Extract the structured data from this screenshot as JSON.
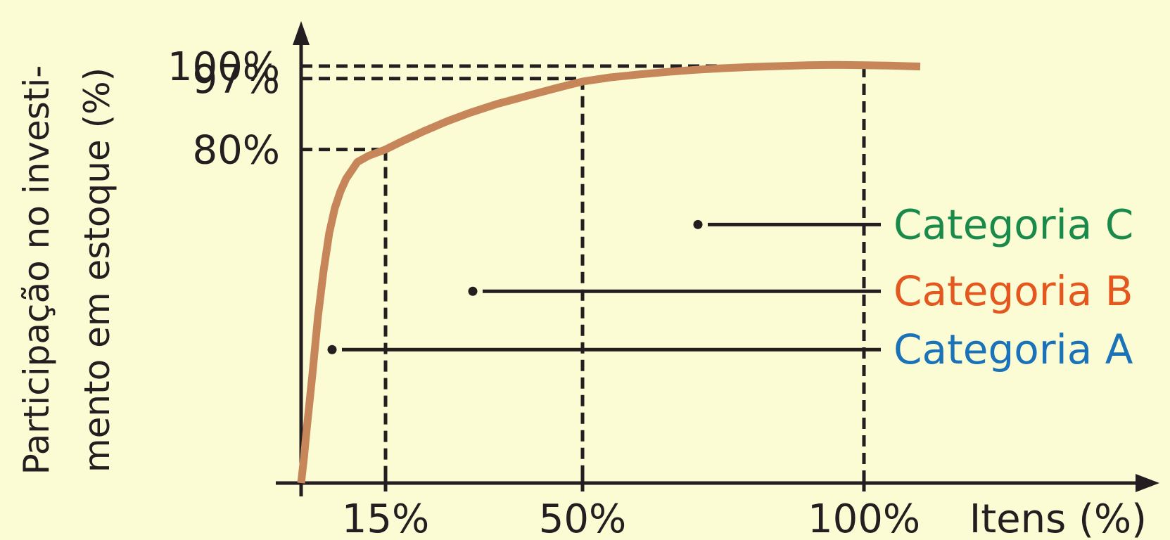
{
  "chart_data": {
    "type": "line",
    "title": "",
    "ylabel_lines": [
      "Participação no investi-",
      "mento em estoque (%)"
    ],
    "xlabel": "Itens (%)",
    "x_ticks": [
      {
        "value": 15,
        "label": "15%"
      },
      {
        "value": 50,
        "label": "50%"
      },
      {
        "value": 100,
        "label": "100%"
      }
    ],
    "y_ticks": [
      {
        "value": 80,
        "label": "80%"
      },
      {
        "value": 97,
        "label": "97%"
      },
      {
        "value": 100,
        "label": "100%"
      }
    ],
    "xlim": [
      0,
      112
    ],
    "ylim": [
      0,
      108
    ],
    "series": [
      {
        "color": "#c6865a",
        "x": [
          0,
          0.5,
          1,
          2,
          3,
          4,
          5,
          6,
          7,
          8,
          9,
          10,
          12,
          15,
          18,
          22,
          26,
          30,
          35,
          40,
          45,
          50,
          55,
          60,
          65,
          70,
          75,
          80,
          85,
          90,
          95,
          100,
          105,
          110
        ],
        "y": [
          0,
          6,
          13,
          26,
          40,
          51,
          60,
          66,
          70,
          73,
          75,
          77,
          78.5,
          80,
          82,
          84.5,
          86.8,
          88.8,
          91,
          92.8,
          94.6,
          96.3,
          97.3,
          98.0,
          98.6,
          99.1,
          99.5,
          99.8,
          100.0,
          100.2,
          100.3,
          100.2,
          100.1,
          99.9
        ]
      }
    ],
    "reference_points": [
      {
        "x": 15,
        "y": 80
      },
      {
        "x": 50,
        "y": 97
      },
      {
        "x": 100,
        "y": 100
      }
    ],
    "annotations": [
      {
        "label": "Categoria C",
        "color": "#1a8a4a",
        "x_start": 71,
        "x_end": 103,
        "y": 62
      },
      {
        "label": "Categoria B",
        "color": "#e4571e",
        "x_start": 31,
        "x_end": 103,
        "y": 46
      },
      {
        "label": "Categoria A",
        "color": "#1a73b8",
        "x_start": 6,
        "x_end": 103,
        "y": 32
      }
    ],
    "grid": false
  }
}
